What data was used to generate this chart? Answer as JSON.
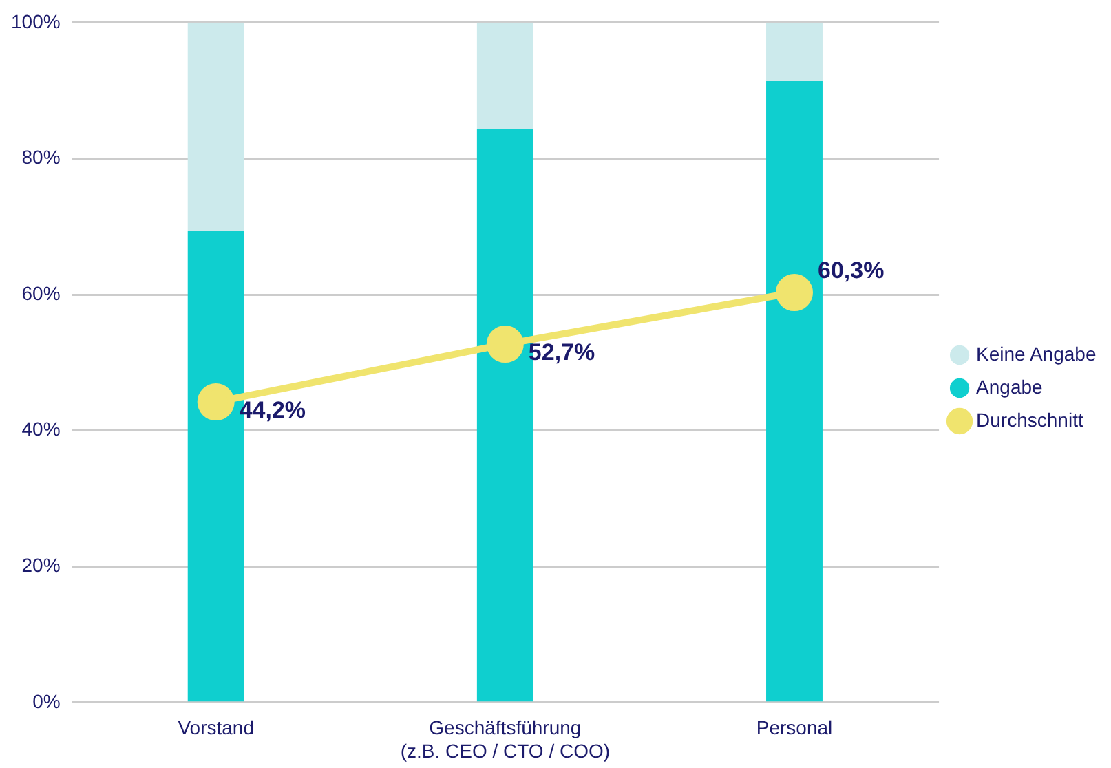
{
  "chart_data": {
    "type": "bar",
    "stacked": true,
    "categories": [
      "Vorstand",
      "Geschäftsführung\n(z.B. CEO / CTO / COO)",
      "Personal"
    ],
    "series": [
      {
        "name": "Angabe",
        "color": "#0fcfcf",
        "values": [
          69.3,
          84.3,
          91.4
        ]
      },
      {
        "name": "Keine Angabe",
        "color": "#cceaec",
        "values": [
          30.7,
          15.7,
          8.6
        ]
      },
      {
        "name": "Durchschnitt",
        "type": "line",
        "color": "#f0e46e",
        "marker": "circle",
        "values": [
          44.2,
          52.7,
          60.3
        ],
        "value_labels": [
          "44,2%",
          "52,7%",
          "60,3%"
        ]
      }
    ],
    "ylim": [
      0,
      100
    ],
    "yticks": [
      {
        "value": 0,
        "label": "0%"
      },
      {
        "value": 20,
        "label": "20%"
      },
      {
        "value": 40,
        "label": "40%"
      },
      {
        "value": 60,
        "label": "60%"
      },
      {
        "value": 80,
        "label": "80%"
      },
      {
        "value": 100,
        "label": "100%"
      }
    ],
    "grid": "y",
    "legend": "right"
  }
}
